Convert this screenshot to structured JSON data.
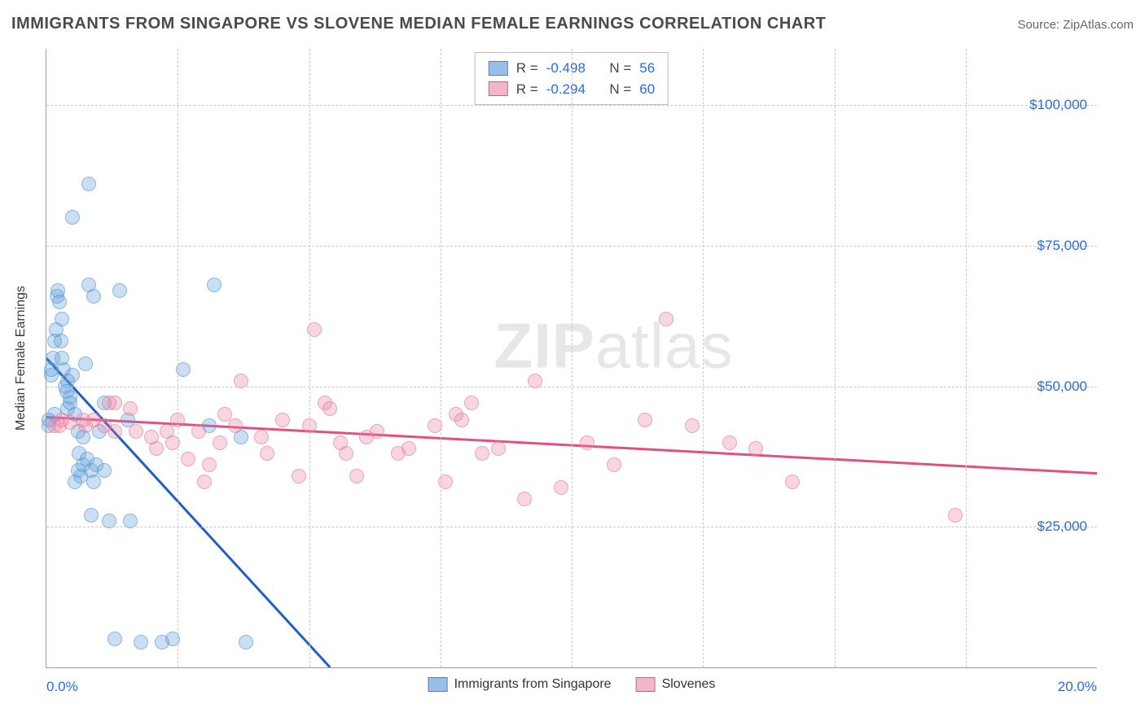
{
  "header": {
    "title": "IMMIGRANTS FROM SINGAPORE VS SLOVENE MEDIAN FEMALE EARNINGS CORRELATION CHART",
    "source": "Source: ZipAtlas.com"
  },
  "watermark": {
    "bold": "ZIP",
    "rest": "atlas"
  },
  "chart": {
    "type": "scatter",
    "background_color": "#ffffff",
    "grid_color": "#c9c9c9",
    "axis_color": "#9aa0a6",
    "title_color": "#4a4a4a",
    "tick_color": "#2b6cd4",
    "tick_fontsize": 17,
    "ylabel": "Median Female Earnings",
    "ylabel_fontsize": 16,
    "ylabel_color": "#3a3a3a",
    "ylim_min": 0,
    "ylim_max": 110000,
    "ytick_values": [
      25000,
      50000,
      75000,
      100000
    ],
    "ytick_labels": [
      "$25,000",
      "$50,000",
      "$75,000",
      "$100,000"
    ],
    "xlim_min": 0,
    "xlim_max": 20,
    "xtick_values": [
      0,
      20
    ],
    "xtick_labels": [
      "0.0%",
      "20.0%"
    ],
    "xgrid_values": [
      2.5,
      5.0,
      7.5,
      10.0,
      12.5,
      15.0,
      17.5
    ],
    "marker_radius": 9,
    "marker_fill_opacity": 0.32,
    "marker_border_opacity": 0.6,
    "line_width": 3,
    "stats_box": {
      "border_color": "#bdbdbd",
      "rows": [
        {
          "swatch": "#99bfe8",
          "r_label": "R =",
          "r_val": "-0.498",
          "n_label": "N =",
          "n_val": "56"
        },
        {
          "swatch": "#f4b6c7",
          "r_label": "R =",
          "r_val": "-0.294",
          "n_label": "N =",
          "n_val": "60"
        }
      ]
    },
    "legend": [
      {
        "swatch": "#99bfe8",
        "label": "Immigrants from Singapore"
      },
      {
        "swatch": "#f4b6c7",
        "label": "Slovenes"
      }
    ],
    "series": [
      {
        "name": "Immigrants from Singapore",
        "color": "#5e9ad6",
        "line_color": "#1f5fc4",
        "trend": {
          "x1": 0.0,
          "y1": 55000,
          "x2": 5.4,
          "y2": 0
        },
        "points": [
          [
            0.05,
            43000
          ],
          [
            0.05,
            44000
          ],
          [
            0.1,
            52000
          ],
          [
            0.1,
            53000
          ],
          [
            0.12,
            55000
          ],
          [
            0.15,
            58000
          ],
          [
            0.15,
            45000
          ],
          [
            0.18,
            60000
          ],
          [
            0.2,
            66000
          ],
          [
            0.22,
            67000
          ],
          [
            0.25,
            65000
          ],
          [
            0.28,
            58000
          ],
          [
            0.3,
            62000
          ],
          [
            0.3,
            55000
          ],
          [
            0.32,
            53000
          ],
          [
            0.35,
            50000
          ],
          [
            0.38,
            49000
          ],
          [
            0.4,
            51000
          ],
          [
            0.4,
            46000
          ],
          [
            0.45,
            48000
          ],
          [
            0.45,
            47000
          ],
          [
            0.5,
            52000
          ],
          [
            0.5,
            80000
          ],
          [
            0.55,
            45000
          ],
          [
            0.55,
            33000
          ],
          [
            0.6,
            42000
          ],
          [
            0.6,
            35000
          ],
          [
            0.62,
            38000
          ],
          [
            0.65,
            34000
          ],
          [
            0.7,
            36000
          ],
          [
            0.7,
            41000
          ],
          [
            0.75,
            54000
          ],
          [
            0.78,
            37000
          ],
          [
            0.8,
            86000
          ],
          [
            0.8,
            68000
          ],
          [
            0.85,
            35000
          ],
          [
            0.85,
            27000
          ],
          [
            0.9,
            66000
          ],
          [
            0.9,
            33000
          ],
          [
            0.95,
            36000
          ],
          [
            1.0,
            42000
          ],
          [
            1.1,
            35000
          ],
          [
            1.1,
            47000
          ],
          [
            1.2,
            26000
          ],
          [
            1.3,
            5000
          ],
          [
            1.4,
            67000
          ],
          [
            1.55,
            44000
          ],
          [
            1.6,
            26000
          ],
          [
            1.8,
            4500
          ],
          [
            2.2,
            4500
          ],
          [
            2.4,
            5000
          ],
          [
            2.6,
            53000
          ],
          [
            3.1,
            43000
          ],
          [
            3.2,
            68000
          ],
          [
            3.7,
            41000
          ],
          [
            3.8,
            4500
          ]
        ]
      },
      {
        "name": "Slovenes",
        "color": "#e87ea0",
        "line_color": "#e24f84",
        "trend": {
          "x1": 0.0,
          "y1": 44500,
          "x2": 20.0,
          "y2": 34500
        },
        "points": [
          [
            0.15,
            43000
          ],
          [
            0.25,
            43000
          ],
          [
            0.3,
            44000
          ],
          [
            0.45,
            43500
          ],
          [
            0.7,
            44000
          ],
          [
            0.75,
            43000
          ],
          [
            0.9,
            44000
          ],
          [
            1.1,
            43000
          ],
          [
            1.2,
            47000
          ],
          [
            1.3,
            42000
          ],
          [
            1.3,
            47000
          ],
          [
            1.6,
            46000
          ],
          [
            1.7,
            42000
          ],
          [
            2.0,
            41000
          ],
          [
            2.1,
            39000
          ],
          [
            2.3,
            42000
          ],
          [
            2.4,
            40000
          ],
          [
            2.5,
            44000
          ],
          [
            2.7,
            37000
          ],
          [
            2.9,
            42000
          ],
          [
            3.0,
            33000
          ],
          [
            3.1,
            36000
          ],
          [
            3.3,
            40000
          ],
          [
            3.4,
            45000
          ],
          [
            3.6,
            43000
          ],
          [
            3.7,
            51000
          ],
          [
            4.1,
            41000
          ],
          [
            4.2,
            38000
          ],
          [
            4.5,
            44000
          ],
          [
            4.8,
            34000
          ],
          [
            5.0,
            43000
          ],
          [
            5.1,
            60000
          ],
          [
            5.3,
            47000
          ],
          [
            5.4,
            46000
          ],
          [
            5.6,
            40000
          ],
          [
            5.7,
            38000
          ],
          [
            5.9,
            34000
          ],
          [
            6.1,
            41000
          ],
          [
            6.3,
            42000
          ],
          [
            6.7,
            38000
          ],
          [
            6.9,
            39000
          ],
          [
            7.4,
            43000
          ],
          [
            7.6,
            33000
          ],
          [
            7.8,
            45000
          ],
          [
            7.9,
            44000
          ],
          [
            8.1,
            47000
          ],
          [
            8.3,
            38000
          ],
          [
            8.6,
            39000
          ],
          [
            9.1,
            30000
          ],
          [
            9.3,
            51000
          ],
          [
            9.8,
            32000
          ],
          [
            10.3,
            40000
          ],
          [
            10.8,
            36000
          ],
          [
            11.4,
            44000
          ],
          [
            11.8,
            62000
          ],
          [
            12.3,
            43000
          ],
          [
            13.0,
            40000
          ],
          [
            13.5,
            39000
          ],
          [
            14.2,
            33000
          ],
          [
            17.3,
            27000
          ]
        ]
      }
    ]
  }
}
